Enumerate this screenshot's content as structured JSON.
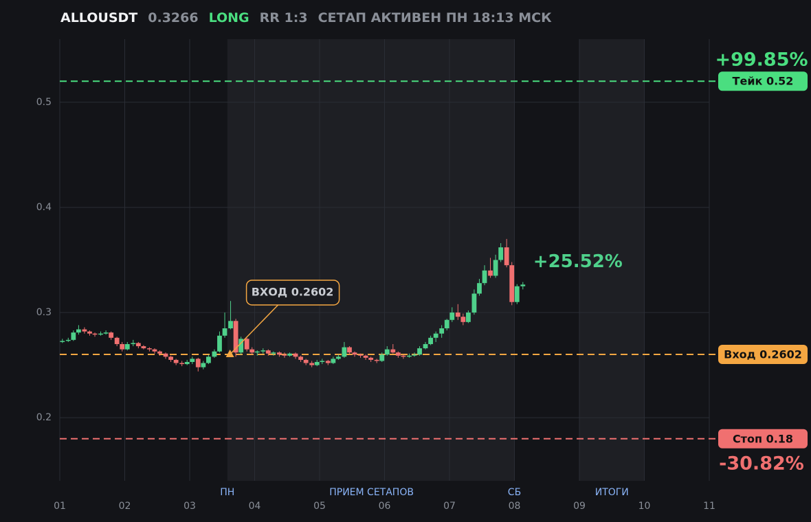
{
  "chart_data": {
    "type": "candlestick",
    "header": {
      "symbol": "ALLOUSDT",
      "price": "0.3266",
      "side": "LONG",
      "rr": "RR 1:3",
      "status": "СЕТАП АКТИВЕН ПН 18:13 МСК"
    },
    "up_color": "#4fd18b",
    "down_color": "#f07070",
    "xlim": [
      1,
      11
    ],
    "xticks": [
      {
        "value": 1,
        "label": "01"
      },
      {
        "value": 2,
        "label": "02"
      },
      {
        "value": 3,
        "label": "03"
      },
      {
        "value": 4,
        "label": "04"
      },
      {
        "value": 5,
        "label": "05"
      },
      {
        "value": 6,
        "label": "06"
      },
      {
        "value": 7,
        "label": "07"
      },
      {
        "value": 8,
        "label": "08"
      },
      {
        "value": 9,
        "label": "09"
      },
      {
        "value": 10,
        "label": "10"
      },
      {
        "value": 11,
        "label": "11"
      }
    ],
    "ylim": [
      0.14,
      0.56
    ],
    "yticks": [
      0.2,
      0.3,
      0.4,
      0.5
    ],
    "grid": true,
    "bands": [
      {
        "from": 3.58,
        "to": 8
      },
      {
        "from": 9,
        "to": 10
      }
    ],
    "band_labels": [
      {
        "x": 3.58,
        "text": "ПН"
      },
      {
        "x": 5.8,
        "text": "ПРИЕМ СЕТАПОВ"
      },
      {
        "x": 8,
        "text": "СБ"
      },
      {
        "x": 9.5,
        "text": "ИТОГИ"
      }
    ],
    "levels": [
      {
        "label": "Тейк 0.52",
        "value": 0.52,
        "color": "#4ade80",
        "pct": "+99.85%"
      },
      {
        "label": "Вход 0.2602",
        "value": 0.2602,
        "color": "#f5a742"
      },
      {
        "label": "Стоп 0.18",
        "value": 0.18,
        "color": "#f07070",
        "pct": "-30.82%"
      }
    ],
    "annotation": {
      "text": "ВХОД 0.2602",
      "x": 3.62,
      "value": 0.2602,
      "color": "#f5a742"
    },
    "current_change": "+25.52%",
    "x": [
      1.04,
      1.13,
      1.21,
      1.29,
      1.38,
      1.46,
      1.54,
      1.63,
      1.71,
      1.79,
      1.88,
      1.96,
      2.04,
      2.13,
      2.21,
      2.29,
      2.38,
      2.46,
      2.54,
      2.63,
      2.71,
      2.79,
      2.88,
      2.96,
      3.04,
      3.13,
      3.21,
      3.29,
      3.38,
      3.46,
      3.54,
      3.63,
      3.71,
      3.79,
      3.88,
      3.96,
      4.04,
      4.13,
      4.21,
      4.29,
      4.38,
      4.46,
      4.54,
      4.63,
      4.71,
      4.79,
      4.88,
      4.96,
      5.04,
      5.13,
      5.21,
      5.29,
      5.38,
      5.46,
      5.54,
      5.63,
      5.71,
      5.79,
      5.88,
      5.96,
      6.04,
      6.13,
      6.21,
      6.29,
      6.38,
      6.46,
      6.54,
      6.63,
      6.71,
      6.79,
      6.88,
      6.96,
      7.04,
      7.13,
      7.21,
      7.29,
      7.38,
      7.46,
      7.54,
      7.63,
      7.71,
      7.79,
      7.88,
      7.96,
      8.04,
      8.13
    ],
    "candles": [
      [
        0.272,
        0.275,
        0.271,
        0.273
      ],
      [
        0.273,
        0.276,
        0.272,
        0.274
      ],
      [
        0.274,
        0.283,
        0.273,
        0.281
      ],
      [
        0.281,
        0.288,
        0.279,
        0.284
      ],
      [
        0.284,
        0.286,
        0.28,
        0.282
      ],
      [
        0.282,
        0.283,
        0.278,
        0.28
      ],
      [
        0.28,
        0.281,
        0.277,
        0.279
      ],
      [
        0.279,
        0.282,
        0.278,
        0.28
      ],
      [
        0.28,
        0.283,
        0.279,
        0.281
      ],
      [
        0.281,
        0.282,
        0.274,
        0.276
      ],
      [
        0.276,
        0.277,
        0.268,
        0.27
      ],
      [
        0.27,
        0.272,
        0.263,
        0.265
      ],
      [
        0.265,
        0.272,
        0.264,
        0.27
      ],
      [
        0.27,
        0.274,
        0.268,
        0.271
      ],
      [
        0.271,
        0.272,
        0.266,
        0.268
      ],
      [
        0.268,
        0.269,
        0.265,
        0.266
      ],
      [
        0.266,
        0.267,
        0.263,
        0.265
      ],
      [
        0.265,
        0.266,
        0.261,
        0.263
      ],
      [
        0.263,
        0.264,
        0.259,
        0.261
      ],
      [
        0.261,
        0.262,
        0.256,
        0.258
      ],
      [
        0.258,
        0.259,
        0.253,
        0.255
      ],
      [
        0.255,
        0.256,
        0.25,
        0.252
      ],
      [
        0.252,
        0.254,
        0.249,
        0.251
      ],
      [
        0.251,
        0.255,
        0.25,
        0.253
      ],
      [
        0.253,
        0.258,
        0.251,
        0.256
      ],
      [
        0.256,
        0.257,
        0.244,
        0.248
      ],
      [
        0.248,
        0.254,
        0.246,
        0.252
      ],
      [
        0.252,
        0.26,
        0.251,
        0.258
      ],
      [
        0.258,
        0.265,
        0.257,
        0.263
      ],
      [
        0.263,
        0.282,
        0.262,
        0.278
      ],
      [
        0.278,
        0.3,
        0.276,
        0.285
      ],
      [
        0.285,
        0.311,
        0.284,
        0.292
      ],
      [
        0.292,
        0.294,
        0.258,
        0.262
      ],
      [
        0.262,
        0.277,
        0.26,
        0.275
      ],
      [
        0.275,
        0.276,
        0.263,
        0.265
      ],
      [
        0.265,
        0.267,
        0.26,
        0.262
      ],
      [
        0.262,
        0.264,
        0.259,
        0.263
      ],
      [
        0.263,
        0.266,
        0.261,
        0.264
      ],
      [
        0.264,
        0.265,
        0.259,
        0.261
      ],
      [
        0.261,
        0.263,
        0.259,
        0.262
      ],
      [
        0.262,
        0.263,
        0.258,
        0.26
      ],
      [
        0.26,
        0.262,
        0.257,
        0.259
      ],
      [
        0.259,
        0.262,
        0.258,
        0.261
      ],
      [
        0.261,
        0.262,
        0.256,
        0.258
      ],
      [
        0.258,
        0.259,
        0.253,
        0.255
      ],
      [
        0.255,
        0.256,
        0.25,
        0.252
      ],
      [
        0.252,
        0.254,
        0.248,
        0.25
      ],
      [
        0.25,
        0.255,
        0.249,
        0.253
      ],
      [
        0.253,
        0.256,
        0.251,
        0.254
      ],
      [
        0.254,
        0.255,
        0.25,
        0.252
      ],
      [
        0.252,
        0.258,
        0.251,
        0.256
      ],
      [
        0.256,
        0.26,
        0.255,
        0.258
      ],
      [
        0.258,
        0.272,
        0.257,
        0.267
      ],
      [
        0.267,
        0.268,
        0.26,
        0.262
      ],
      [
        0.262,
        0.263,
        0.258,
        0.26
      ],
      [
        0.26,
        0.261,
        0.257,
        0.259
      ],
      [
        0.259,
        0.26,
        0.255,
        0.257
      ],
      [
        0.257,
        0.258,
        0.253,
        0.255
      ],
      [
        0.255,
        0.256,
        0.252,
        0.254
      ],
      [
        0.254,
        0.262,
        0.253,
        0.26
      ],
      [
        0.26,
        0.268,
        0.259,
        0.265
      ],
      [
        0.265,
        0.27,
        0.261,
        0.262
      ],
      [
        0.262,
        0.263,
        0.257,
        0.259
      ],
      [
        0.259,
        0.26,
        0.256,
        0.258
      ],
      [
        0.258,
        0.261,
        0.257,
        0.259
      ],
      [
        0.259,
        0.262,
        0.258,
        0.26
      ],
      [
        0.26,
        0.268,
        0.259,
        0.266
      ],
      [
        0.266,
        0.272,
        0.265,
        0.27
      ],
      [
        0.27,
        0.278,
        0.269,
        0.276
      ],
      [
        0.276,
        0.282,
        0.272,
        0.28
      ],
      [
        0.28,
        0.288,
        0.276,
        0.285
      ],
      [
        0.285,
        0.294,
        0.283,
        0.293
      ],
      [
        0.293,
        0.305,
        0.291,
        0.3
      ],
      [
        0.3,
        0.308,
        0.293,
        0.296
      ],
      [
        0.296,
        0.299,
        0.288,
        0.291
      ],
      [
        0.291,
        0.302,
        0.29,
        0.3
      ],
      [
        0.3,
        0.322,
        0.298,
        0.318
      ],
      [
        0.318,
        0.332,
        0.316,
        0.328
      ],
      [
        0.328,
        0.345,
        0.326,
        0.34
      ],
      [
        0.34,
        0.352,
        0.333,
        0.335
      ],
      [
        0.335,
        0.355,
        0.333,
        0.35
      ],
      [
        0.35,
        0.366,
        0.348,
        0.362
      ],
      [
        0.362,
        0.37,
        0.343,
        0.345
      ],
      [
        0.345,
        0.348,
        0.307,
        0.31
      ],
      [
        0.31,
        0.327,
        0.308,
        0.325
      ],
      [
        0.325,
        0.329,
        0.322,
        0.3266
      ]
    ]
  }
}
